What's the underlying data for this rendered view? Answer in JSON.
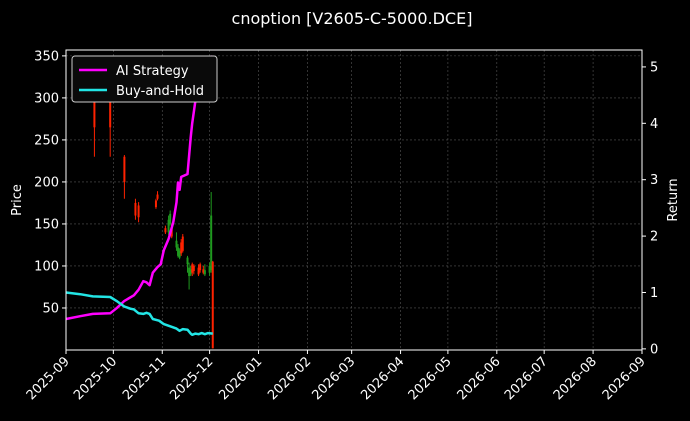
{
  "chart_data": {
    "type": "line",
    "title": "cnoption [V2605-C-5000.DCE]",
    "ylabel": "Price",
    "y2label": "Return",
    "grid": true,
    "legend_placement": "top-left",
    "x_range": [
      "2025-09-01",
      "2026-09-01"
    ],
    "ylim": [
      0,
      357
    ],
    "y2lim": [
      -0.02,
      5.3
    ],
    "x_ticks": [
      "2025-09",
      "2025-10",
      "2025-11",
      "2025-12",
      "2026-01",
      "2026-02",
      "2026-03",
      "2026-04",
      "2026-05",
      "2026-06",
      "2026-07",
      "2026-08",
      "2026-09"
    ],
    "y_ticks": [
      "50",
      "100",
      "150",
      "200",
      "250",
      "300",
      "350"
    ],
    "y2_ticks": [
      "0",
      "1",
      "2",
      "3",
      "4",
      "5"
    ],
    "colors": {
      "background": "#000000",
      "ai_strategy": "#ff00ff",
      "buy_and_hold": "#22e5e5",
      "candle_up": "#1f9a1f",
      "candle_down": "#ff2200",
      "grid": "#555555",
      "axis": "#ffffff"
    },
    "series": [
      {
        "name": "AI Strategy",
        "axis": "right",
        "color": "#ff00ff",
        "points": [
          [
            "2025-09-01",
            0.53
          ],
          [
            "2025-09-10",
            0.58
          ],
          [
            "2025-09-18",
            0.62
          ],
          [
            "2025-09-29",
            0.63
          ],
          [
            "2025-10-03",
            0.72
          ],
          [
            "2025-10-08",
            0.85
          ],
          [
            "2025-10-14",
            0.95
          ],
          [
            "2025-10-17",
            1.05
          ],
          [
            "2025-10-20",
            1.2
          ],
          [
            "2025-10-22",
            1.18
          ],
          [
            "2025-10-24",
            1.13
          ],
          [
            "2025-10-26",
            1.35
          ],
          [
            "2025-10-29",
            1.45
          ],
          [
            "2025-10-31",
            1.5
          ],
          [
            "2025-11-02",
            1.75
          ],
          [
            "2025-11-05",
            1.95
          ],
          [
            "2025-11-08",
            2.25
          ],
          [
            "2025-11-10",
            2.6
          ],
          [
            "2025-11-11",
            2.95
          ],
          [
            "2025-11-12",
            2.82
          ],
          [
            "2025-11-13",
            3.05
          ],
          [
            "2025-11-17",
            3.1
          ],
          [
            "2025-11-19",
            3.75
          ],
          [
            "2025-11-20",
            4.0
          ],
          [
            "2025-11-22",
            4.4
          ],
          [
            "2025-11-24",
            4.45
          ],
          [
            "2025-11-26",
            4.9
          ],
          [
            "2025-11-29",
            4.95
          ],
          [
            "2025-12-01",
            5.0
          ],
          [
            "2025-12-03",
            5.2
          ]
        ]
      },
      {
        "name": "Buy-and-Hold",
        "axis": "right",
        "color": "#22e5e5",
        "points": [
          [
            "2025-09-01",
            1.0
          ],
          [
            "2025-09-10",
            0.97
          ],
          [
            "2025-09-18",
            0.93
          ],
          [
            "2025-09-29",
            0.92
          ],
          [
            "2025-10-03",
            0.85
          ],
          [
            "2025-10-08",
            0.75
          ],
          [
            "2025-10-12",
            0.71
          ],
          [
            "2025-10-14",
            0.7
          ],
          [
            "2025-10-17",
            0.63
          ],
          [
            "2025-10-20",
            0.62
          ],
          [
            "2025-10-22",
            0.64
          ],
          [
            "2025-10-24",
            0.62
          ],
          [
            "2025-10-26",
            0.53
          ],
          [
            "2025-10-30",
            0.5
          ],
          [
            "2025-11-02",
            0.44
          ],
          [
            "2025-11-06",
            0.4
          ],
          [
            "2025-11-10",
            0.36
          ],
          [
            "2025-11-12",
            0.32
          ],
          [
            "2025-11-14",
            0.35
          ],
          [
            "2025-11-17",
            0.34
          ],
          [
            "2025-11-19",
            0.27
          ],
          [
            "2025-11-20",
            0.25
          ],
          [
            "2025-11-22",
            0.27
          ],
          [
            "2025-11-24",
            0.26
          ],
          [
            "2025-11-26",
            0.28
          ],
          [
            "2025-11-28",
            0.26
          ],
          [
            "2025-11-30",
            0.28
          ],
          [
            "2025-12-03",
            0.27
          ]
        ]
      }
    ],
    "candles": [
      {
        "date": "2025-09-19",
        "open": 345,
        "close": 265,
        "high": 345,
        "low": 230
      },
      {
        "date": "2025-09-29",
        "open": 310,
        "close": 265,
        "high": 312,
        "low": 230
      },
      {
        "date": "2025-10-08",
        "open": 230,
        "close": 200,
        "high": 232,
        "low": 180
      },
      {
        "date": "2025-10-15",
        "open": 175,
        "close": 160,
        "high": 180,
        "low": 155
      },
      {
        "date": "2025-10-17",
        "open": 172,
        "close": 158,
        "high": 176,
        "low": 152
      },
      {
        "date": "2025-10-28",
        "open": 178,
        "close": 170,
        "high": 180,
        "low": 168
      },
      {
        "date": "2025-10-29",
        "open": 185,
        "close": 180,
        "high": 189,
        "low": 178
      },
      {
        "date": "2025-11-03",
        "open": 145,
        "close": 140,
        "high": 148,
        "low": 138
      },
      {
        "date": "2025-11-05",
        "open": 140,
        "close": 155,
        "high": 160,
        "low": 137
      },
      {
        "date": "2025-11-06",
        "open": 150,
        "close": 162,
        "high": 166,
        "low": 148
      },
      {
        "date": "2025-11-07",
        "open": 145,
        "close": 135,
        "high": 150,
        "low": 133
      },
      {
        "date": "2025-11-10",
        "open": 122,
        "close": 130,
        "high": 140,
        "low": 118
      },
      {
        "date": "2025-11-11",
        "open": 112,
        "close": 122,
        "high": 126,
        "low": 110
      },
      {
        "date": "2025-11-12",
        "open": 110,
        "close": 118,
        "high": 121,
        "low": 108
      },
      {
        "date": "2025-11-13",
        "open": 128,
        "close": 115,
        "high": 132,
        "low": 112
      },
      {
        "date": "2025-11-14",
        "open": 135,
        "close": 118,
        "high": 138,
        "low": 116
      },
      {
        "date": "2025-11-17",
        "open": 102,
        "close": 110,
        "high": 112,
        "low": 92
      },
      {
        "date": "2025-11-18",
        "open": 88,
        "close": 98,
        "high": 104,
        "low": 72
      },
      {
        "date": "2025-11-19",
        "open": 90,
        "close": 96,
        "high": 100,
        "low": 88
      },
      {
        "date": "2025-11-20",
        "open": 102,
        "close": 92,
        "high": 104,
        "low": 88
      },
      {
        "date": "2025-11-21",
        "open": 100,
        "close": 94,
        "high": 102,
        "low": 90
      },
      {
        "date": "2025-11-24",
        "open": 98,
        "close": 90,
        "high": 102,
        "low": 88
      },
      {
        "date": "2025-11-25",
        "open": 102,
        "close": 95,
        "high": 104,
        "low": 92
      },
      {
        "date": "2025-11-27",
        "open": 96,
        "close": 92,
        "high": 100,
        "low": 90
      },
      {
        "date": "2025-11-28",
        "open": 90,
        "close": 95,
        "high": 102,
        "low": 88
      },
      {
        "date": "2025-12-01",
        "open": 92,
        "close": 100,
        "high": 104,
        "low": 88
      },
      {
        "date": "2025-12-02",
        "open": 95,
        "close": 160,
        "high": 188,
        "low": 92
      },
      {
        "date": "2025-12-03",
        "open": 105,
        "close": 2,
        "high": 106,
        "low": 2
      }
    ]
  }
}
